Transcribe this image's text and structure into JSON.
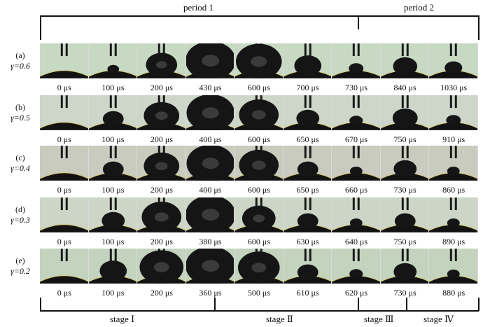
{
  "periods": [
    {
      "label": "period 1"
    },
    {
      "label": "period 2"
    }
  ],
  "stages": [
    {
      "label": "stage Ⅰ"
    },
    {
      "label": "stage Ⅱ"
    },
    {
      "label": "stage Ⅲ"
    },
    {
      "label": "stage Ⅳ"
    }
  ],
  "rows": [
    {
      "id": "(a)",
      "gamma": "γ=0.6",
      "tint": "#c7d9c3",
      "times": [
        "0 μs",
        "100 μs",
        "200 μs",
        "430 μs",
        "600 μs",
        "700 μs",
        "730 μs",
        "840 μs",
        "1030 μs"
      ],
      "bubble_radius": [
        0,
        0.08,
        0.55,
        1.0,
        0.9,
        0.45,
        0.15,
        0.38,
        0.22
      ]
    },
    {
      "id": "(b)",
      "gamma": "γ=0.5",
      "tint": "#cdd6c8",
      "times": [
        "0 μs",
        "100 μs",
        "200 μs",
        "400 μs",
        "600 μs",
        "650 μs",
        "670 μs",
        "750 μs",
        "910 μs"
      ],
      "bubble_radius": [
        0,
        0.3,
        0.65,
        0.95,
        0.75,
        0.35,
        0.12,
        0.4,
        0.15
      ]
    },
    {
      "id": "(c)",
      "gamma": "γ=0.4",
      "tint": "#c9cbbe",
      "times": [
        "0 μs",
        "100 μs",
        "200 μs",
        "400 μs",
        "600 μs",
        "650 μs",
        "660 μs",
        "730 μs",
        "860 μs"
      ],
      "bubble_radius": [
        0,
        0.3,
        0.65,
        0.95,
        0.75,
        0.3,
        0.1,
        0.35,
        0.1
      ]
    },
    {
      "id": "(d)",
      "gamma": "γ=0.3",
      "tint": "#ccd5c6",
      "times": [
        "0 μs",
        "100 μs",
        "200 μs",
        "380 μs",
        "600 μs",
        "630 μs",
        "640 μs",
        "750 μs",
        "890 μs"
      ],
      "bubble_radius": [
        0,
        0.35,
        0.75,
        1.0,
        0.6,
        0.3,
        0.1,
        0.3,
        0.1
      ]
    },
    {
      "id": "(e)",
      "gamma": "γ=0.2",
      "tint": "#c3d3bd",
      "times": [
        "0 μs",
        "100 μs",
        "200 μs",
        "360 μs",
        "500 μs",
        "610 μs",
        "620 μs",
        "730 μs",
        "880 μs"
      ],
      "bubble_radius": [
        0,
        0.45,
        0.85,
        1.0,
        0.8,
        0.3,
        0.12,
        0.35,
        0.1
      ]
    }
  ]
}
